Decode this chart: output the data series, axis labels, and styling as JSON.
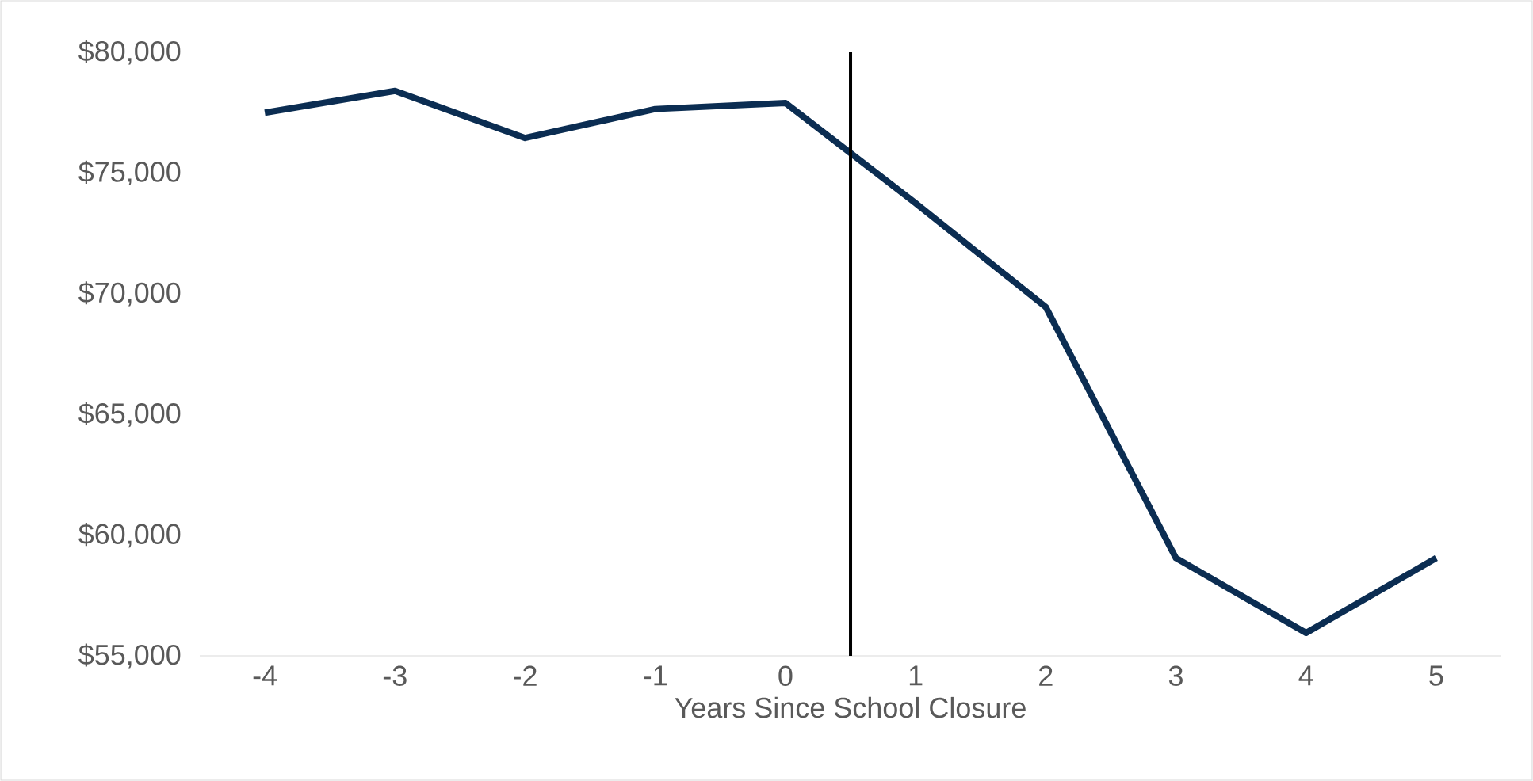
{
  "chart_data": {
    "type": "line",
    "xlabel": "Years Since School Closure",
    "x": [
      -4,
      -3,
      -2,
      -1,
      0,
      1,
      2,
      3,
      4,
      5
    ],
    "series": [
      {
        "color": "#0b2d52",
        "values": [
          77500,
          78400,
          76450,
          77650,
          77900,
          73750,
          69450,
          59050,
          55950,
          59050
        ]
      }
    ],
    "xlim": [
      -4.5,
      5.5
    ],
    "xticks": [
      -4,
      -3,
      -2,
      -1,
      0,
      1,
      2,
      3,
      4,
      5
    ],
    "ylim": [
      55000,
      80000
    ],
    "yticks": [
      {
        "value": 55000,
        "label": "$55,000"
      },
      {
        "value": 60000,
        "label": "$60,000"
      },
      {
        "value": 65000,
        "label": "$65,000"
      },
      {
        "value": 70000,
        "label": "$70,000"
      },
      {
        "value": 75000,
        "label": "$75,000"
      },
      {
        "value": 80000,
        "label": "$80,000"
      }
    ],
    "ref_lines": [
      {
        "axis": "x",
        "value": 0.5,
        "color": "#000000"
      }
    ],
    "marker": "none",
    "line_style": "solid"
  }
}
